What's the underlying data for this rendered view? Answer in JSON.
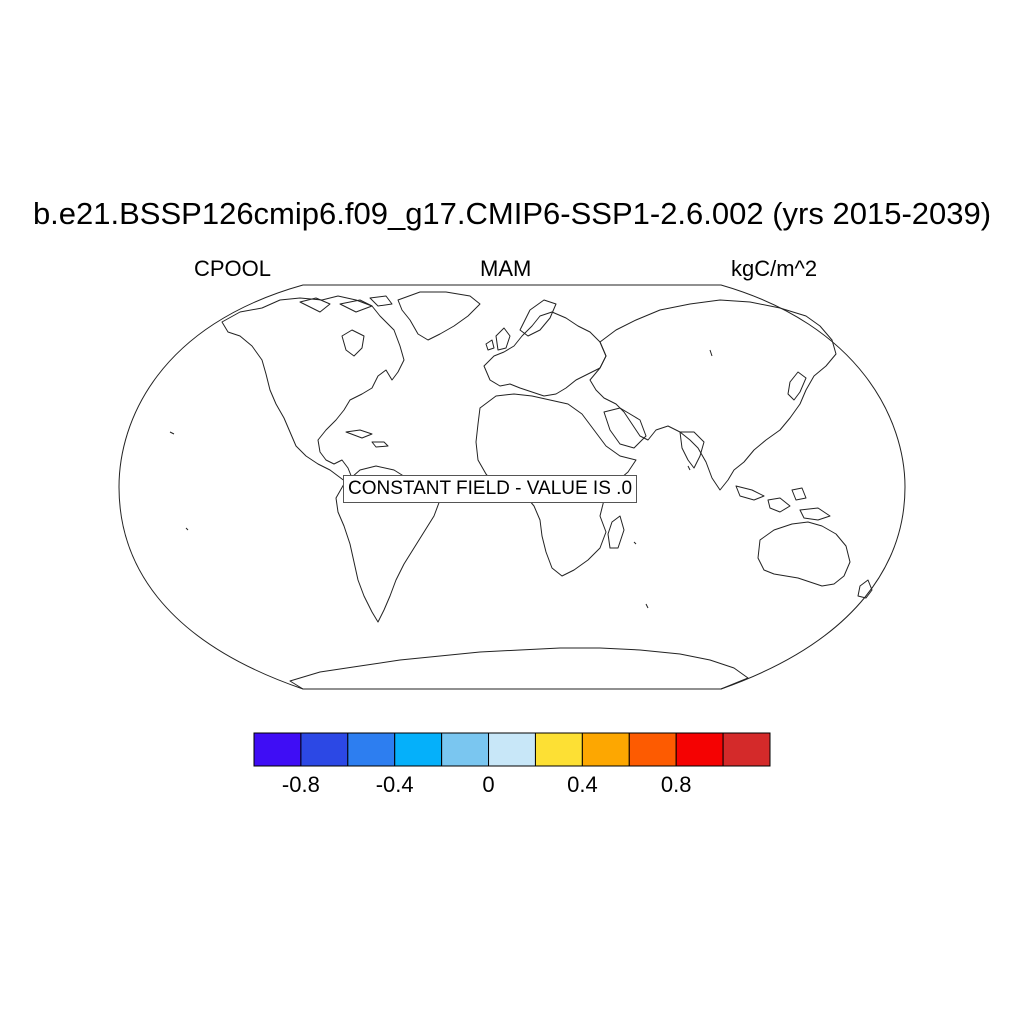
{
  "title": "b.e21.BSSP126cmip6.f09_g17.CMIP6-SSP1-2.6.002 (yrs 2015-2039)",
  "left_string": "CPOOL",
  "center_string": "MAM",
  "right_string": "kgC/m^2",
  "map_note": "CONSTANT FIELD - VALUE IS .0",
  "projection": "Robinson",
  "colorbar": {
    "colors": [
      "#3f0df5",
      "#2c48e5",
      "#2d7ef0",
      "#05b0fa",
      "#7ac6f0",
      "#c8e7f8",
      "#fde034",
      "#fda701",
      "#fd5b01",
      "#f50202",
      "#d42a2a"
    ],
    "labels": [
      "-0.8",
      "-0.4",
      "0",
      "0.4",
      "0.8"
    ]
  },
  "chart_data": {
    "type": "heatmap",
    "title": "b.e21.BSSP126cmip6.f09_g17.CMIP6-SSP1-2.6.002 (yrs 2015-2039)",
    "variable": "CPOOL",
    "season": "MAM",
    "units": "kgC/m^2",
    "constant_value": 0.0,
    "levels": [
      -1.0,
      -0.8,
      -0.6,
      -0.4,
      -0.2,
      0,
      0.2,
      0.4,
      0.6,
      0.8,
      1.0
    ],
    "tick_labels": [
      "-0.8",
      "-0.4",
      "0",
      "0.4",
      "0.8"
    ]
  }
}
